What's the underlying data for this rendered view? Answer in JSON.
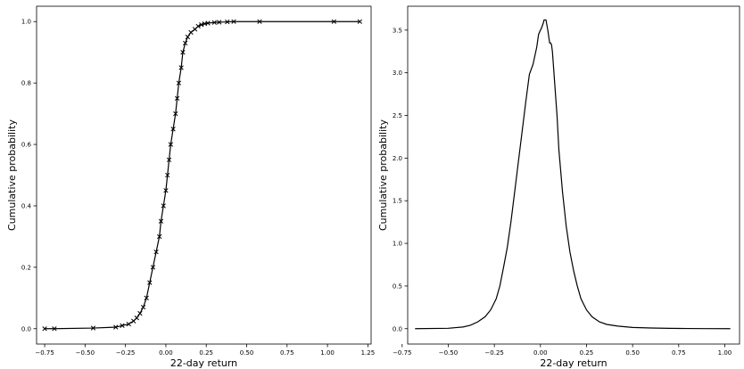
{
  "chart_data": [
    {
      "type": "line",
      "xlabel": "22-day return",
      "ylabel": "Cumulative probability",
      "xlim": [
        -0.8,
        1.27
      ],
      "ylim": [
        -0.05,
        1.05
      ],
      "xticks": [
        -0.75,
        -0.5,
        -0.25,
        0.0,
        0.25,
        0.5,
        0.75,
        1.0,
        1.25
      ],
      "xtick_labels": [
        "−0.75",
        "−0.50",
        "−0.25",
        "0.00",
        "0.25",
        "0.50",
        "0.75",
        "1.00",
        "1.25"
      ],
      "yticks": [
        0.0,
        0.2,
        0.4,
        0.6,
        0.8,
        1.0
      ],
      "ytick_labels": [
        "0.0",
        "0.2",
        "0.4",
        "0.6",
        "0.8",
        "1.0"
      ],
      "grid": false,
      "marker": "x",
      "series": [
        {
          "x": [
            -0.75,
            -0.69,
            -0.45,
            -0.31,
            -0.27,
            -0.23,
            -0.2,
            -0.18,
            -0.16,
            -0.14,
            -0.12,
            -0.1,
            -0.08,
            -0.06,
            -0.04,
            -0.03,
            -0.015,
            0.0,
            0.01,
            0.02,
            0.03,
            0.045,
            0.06,
            0.07,
            0.08,
            0.095,
            0.105,
            0.12,
            0.135,
            0.155,
            0.18,
            0.2,
            0.22,
            0.24,
            0.26,
            0.3,
            0.33,
            0.38,
            0.42,
            0.58,
            1.04,
            1.2
          ],
          "y": [
            0.0,
            0.0,
            0.002,
            0.005,
            0.01,
            0.015,
            0.025,
            0.035,
            0.05,
            0.07,
            0.1,
            0.15,
            0.2,
            0.25,
            0.3,
            0.35,
            0.4,
            0.45,
            0.5,
            0.55,
            0.6,
            0.65,
            0.7,
            0.75,
            0.8,
            0.85,
            0.9,
            0.93,
            0.95,
            0.965,
            0.975,
            0.985,
            0.99,
            0.993,
            0.995,
            0.997,
            0.998,
            0.999,
            1.0,
            1.0,
            1.0,
            1.0
          ]
        }
      ]
    },
    {
      "type": "line",
      "xlabel": "22-day return",
      "ylabel": "Cumulative probability",
      "xlim": [
        -0.72,
        1.08
      ],
      "ylim": [
        -0.18,
        3.78
      ],
      "xticks": [
        -0.75,
        -0.5,
        -0.25,
        0.0,
        0.25,
        0.5,
        0.75,
        1.0
      ],
      "xtick_labels": [
        "−0.75",
        "−0.50",
        "−0.25",
        "0.00",
        "0.25",
        "0.50",
        "0.75",
        "1.00"
      ],
      "yticks": [
        0.0,
        0.5,
        1.0,
        1.5,
        2.0,
        2.5,
        3.0,
        3.5
      ],
      "ytick_labels": [
        "0.0",
        "0.5",
        "1.0",
        "1.5",
        "2.0",
        "2.5",
        "3.0",
        "3.5"
      ],
      "grid": false,
      "series": [
        {
          "x": [
            -0.68,
            -0.5,
            -0.42,
            -0.38,
            -0.34,
            -0.3,
            -0.27,
            -0.24,
            -0.22,
            -0.2,
            -0.18,
            -0.16,
            -0.14,
            -0.12,
            -0.1,
            -0.08,
            -0.06,
            -0.04,
            -0.02,
            -0.01,
            0.0,
            0.005,
            0.01,
            0.015,
            0.02,
            0.03,
            0.04,
            0.05,
            0.055,
            0.06,
            0.065,
            0.07,
            0.08,
            0.09,
            0.1,
            0.12,
            0.14,
            0.16,
            0.18,
            0.2,
            0.22,
            0.25,
            0.28,
            0.32,
            0.36,
            0.42,
            0.5,
            0.6,
            0.7,
            0.8,
            0.9,
            1.03
          ],
          "y": [
            0.0,
            0.005,
            0.02,
            0.04,
            0.08,
            0.14,
            0.22,
            0.35,
            0.5,
            0.72,
            0.95,
            1.25,
            1.6,
            1.95,
            2.3,
            2.65,
            2.98,
            3.1,
            3.3,
            3.45,
            3.5,
            3.52,
            3.55,
            3.58,
            3.62,
            3.62,
            3.5,
            3.35,
            3.35,
            3.33,
            3.25,
            3.1,
            2.8,
            2.5,
            2.1,
            1.6,
            1.2,
            0.9,
            0.68,
            0.5,
            0.35,
            0.22,
            0.14,
            0.08,
            0.05,
            0.03,
            0.015,
            0.008,
            0.004,
            0.002,
            0.001,
            0.0
          ]
        }
      ]
    }
  ]
}
